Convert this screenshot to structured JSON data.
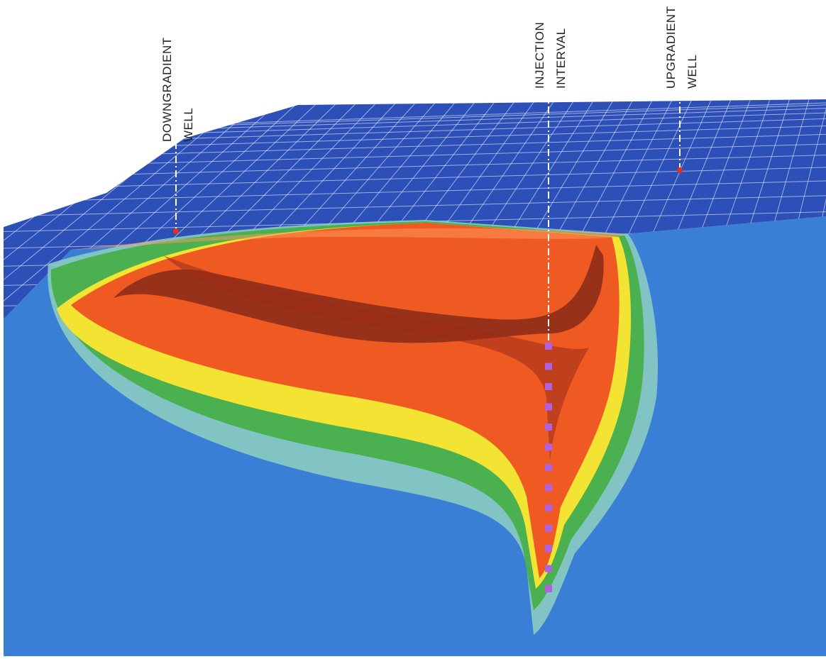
{
  "wells": [
    {
      "line1": "DOWNGRADIENT",
      "line2": "WELL"
    },
    {
      "line1": "INJECTION",
      "line2": "INTERVAL"
    },
    {
      "line1": "UPGRADIENT",
      "line2": "WELL"
    }
  ]
}
